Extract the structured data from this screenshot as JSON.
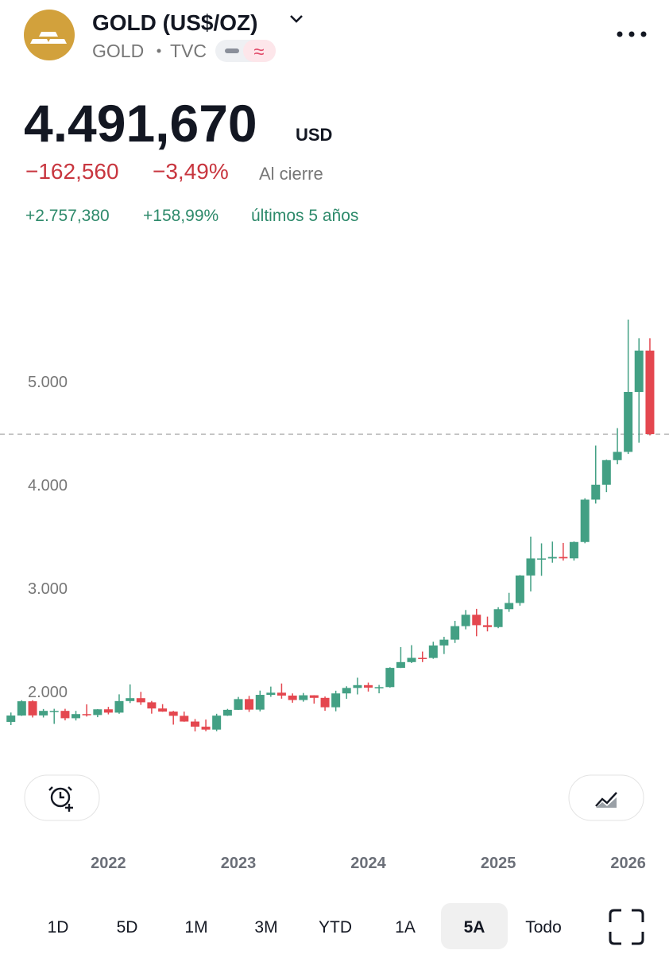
{
  "header": {
    "title": "GOLD (US$/OZ)",
    "symbol": "GOLD",
    "exchange": "TVC"
  },
  "quote": {
    "price": "4.491,670",
    "currency": "USD",
    "change": "−162,560",
    "change_pct": "−3,49%",
    "status": "Al cierre",
    "period_change": "+2.757,380",
    "period_change_pct": "+158,99%",
    "period_label": "últimos 5 años"
  },
  "chart_data": {
    "type": "candlestick",
    "up_color": "#43a084",
    "down_color": "#e4474f",
    "last_price_line": true,
    "x": [
      2021.25,
      2021.333,
      2021.417,
      2021.5,
      2021.583,
      2021.667,
      2021.75,
      2021.833,
      2021.917,
      2022,
      2022.083,
      2022.167,
      2022.25,
      2022.333,
      2022.417,
      2022.5,
      2022.583,
      2022.667,
      2022.75,
      2022.833,
      2022.917,
      2023,
      2023.083,
      2023.167,
      2023.25,
      2023.333,
      2023.417,
      2023.5,
      2023.583,
      2023.667,
      2023.75,
      2023.833,
      2023.917,
      2024,
      2024.083,
      2024.167,
      2024.25,
      2024.333,
      2024.417,
      2024.5,
      2024.583,
      2024.667,
      2024.75,
      2024.833,
      2024.917,
      2025,
      2025.083,
      2025.167,
      2025.25,
      2025.333,
      2025.417,
      2025.5,
      2025.583,
      2025.667,
      2025.75,
      2025.833,
      2025.917,
      2026,
      2026.083,
      2026.167
    ],
    "open": [
      1707,
      1769,
      1907,
      1770,
      1814,
      1814,
      1743,
      1783,
      1774,
      1829,
      1797,
      1909,
      1937,
      1897,
      1837,
      1807,
      1766,
      1711,
      1661,
      1633,
      1768,
      1824,
      1928,
      1826,
      1969,
      1990,
      1962,
      1919,
      1965,
      1940,
      1849,
      1983,
      2036,
      2063,
      2039,
      2044,
      2230,
      2286,
      2327,
      2326,
      2447,
      2503,
      2634,
      2744,
      2643,
      2625,
      2798,
      2858,
      3124,
      3289,
      3289,
      3303,
      3290,
      3448,
      3858,
      4002,
      4240,
      4320,
      4900,
      5300
    ],
    "high": [
      1798,
      1917,
      1917,
      1832,
      1834,
      1834,
      1814,
      1877,
      1831,
      1853,
      1974,
      2070,
      1998,
      1910,
      1879,
      1814,
      1807,
      1735,
      1730,
      1786,
      1833,
      1949,
      1959,
      2010,
      2049,
      2079,
      1983,
      1987,
      1966,
      1953,
      2009,
      2052,
      2135,
      2088,
      2065,
      2236,
      2431,
      2450,
      2388,
      2483,
      2531,
      2685,
      2790,
      2801,
      2726,
      2817,
      2956,
      3128,
      3500,
      3435,
      3452,
      3439,
      3453,
      3871,
      4381,
      4245,
      4550,
      5600,
      5420,
      5420
    ],
    "low": [
      1677,
      1765,
      1750,
      1750,
      1688,
      1722,
      1721,
      1759,
      1753,
      1780,
      1786,
      1890,
      1872,
      1787,
      1805,
      1681,
      1709,
      1615,
      1617,
      1617,
      1765,
      1823,
      1804,
      1809,
      1950,
      1932,
      1893,
      1903,
      1884,
      1815,
      1810,
      1931,
      1973,
      2001,
      1984,
      2039,
      2229,
      2277,
      2286,
      2318,
      2364,
      2471,
      2603,
      2536,
      2583,
      2614,
      2772,
      2832,
      2970,
      3121,
      3248,
      3268,
      3268,
      3436,
      3820,
      3930,
      4200,
      4300,
      4410,
      4480
    ],
    "close": [
      1769,
      1907,
      1770,
      1814,
      1814,
      1743,
      1783,
      1774,
      1829,
      1797,
      1909,
      1937,
      1897,
      1837,
      1807,
      1766,
      1711,
      1661,
      1633,
      1768,
      1824,
      1928,
      1826,
      1969,
      1990,
      1962,
      1919,
      1965,
      1940,
      1849,
      1983,
      2036,
      2063,
      2039,
      2044,
      2230,
      2286,
      2327,
      2326,
      2447,
      2503,
      2634,
      2744,
      2643,
      2625,
      2798,
      2858,
      3124,
      3289,
      3289,
      3303,
      3290,
      3448,
      3858,
      4002,
      4240,
      4320,
      4900,
      5300,
      4491.67
    ],
    "xlim": [
      2021.166,
      2026.314
    ],
    "xticks": [
      2022,
      2023,
      2024,
      2025,
      2026
    ],
    "ylim": [
      1300,
      6000
    ],
    "yticks": [
      {
        "value": 2000,
        "label": "2.000"
      },
      {
        "value": 3000,
        "label": "3.000"
      },
      {
        "value": 4000,
        "label": "4.000"
      },
      {
        "value": 5000,
        "label": "5.000"
      }
    ]
  },
  "ranges": [
    "1D",
    "5D",
    "1M",
    "3M",
    "YTD",
    "1A",
    "5A",
    "Todo"
  ],
  "selected_range": 6
}
